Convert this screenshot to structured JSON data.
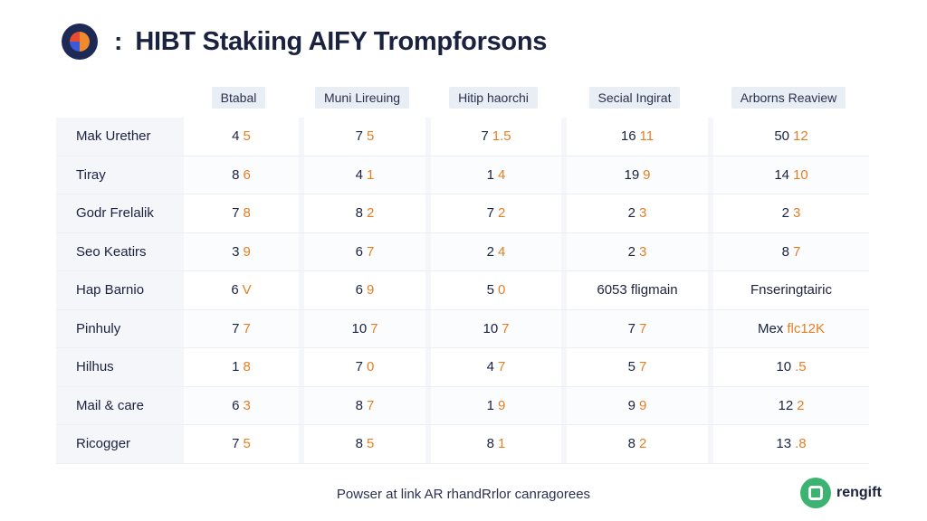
{
  "header": {
    "colon": ":",
    "title": "HIBT Stakiing AIFY Trompforsons"
  },
  "chart_data": {
    "type": "table",
    "columns": [
      "Btabal",
      "Muni Lireuing",
      "Hitip haorchi",
      "Secial Ingirat",
      "Arborns Reaview"
    ],
    "rows": [
      {
        "label": "Mak Urether",
        "cells": [
          [
            "4",
            "5"
          ],
          [
            "7",
            "5"
          ],
          [
            "7",
            "1.5"
          ],
          [
            "16",
            "11"
          ],
          [
            "50",
            "12"
          ]
        ]
      },
      {
        "label": "Tiray",
        "cells": [
          [
            "8",
            "6"
          ],
          [
            "4",
            "1"
          ],
          [
            "1",
            "4"
          ],
          [
            "19",
            "9"
          ],
          [
            "14",
            "10"
          ]
        ]
      },
      {
        "label": "Godr Frelalik",
        "cells": [
          [
            "7",
            "8"
          ],
          [
            "8",
            "2"
          ],
          [
            "7",
            "2"
          ],
          [
            "2",
            "3"
          ],
          [
            "2",
            "3"
          ]
        ]
      },
      {
        "label": "Seo Keatirs",
        "cells": [
          [
            "3",
            "9"
          ],
          [
            "6",
            "7"
          ],
          [
            "2",
            "4"
          ],
          [
            "2",
            "3"
          ],
          [
            "8",
            "7"
          ]
        ]
      },
      {
        "label": "Hap Barnio",
        "cells": [
          [
            "6",
            "V"
          ],
          [
            "6",
            "9"
          ],
          [
            "5",
            "0"
          ],
          [
            "6053 fligmain",
            ""
          ],
          [
            "Fnseringtairic",
            ""
          ]
        ]
      },
      {
        "label": "Pinhuly",
        "cells": [
          [
            "7",
            "7"
          ],
          [
            "10",
            "7"
          ],
          [
            "10",
            "7"
          ],
          [
            "7",
            "7"
          ],
          [
            "Mex",
            "flc12K"
          ]
        ]
      },
      {
        "label": "Hilhus",
        "cells": [
          [
            "1",
            "8"
          ],
          [
            "7",
            "0"
          ],
          [
            "4",
            "7"
          ],
          [
            "5",
            "7"
          ],
          [
            "10",
            ".5"
          ]
        ]
      },
      {
        "label": "Mail & care",
        "cells": [
          [
            "6",
            "3"
          ],
          [
            "8",
            "7"
          ],
          [
            "1",
            "9"
          ],
          [
            "9",
            "9"
          ],
          [
            "12",
            "2"
          ]
        ]
      },
      {
        "label": "Ricogger",
        "cells": [
          [
            "7",
            "5"
          ],
          [
            "8",
            "5"
          ],
          [
            "8",
            "1"
          ],
          [
            "8",
            "2"
          ],
          [
            "13",
            ".8"
          ]
        ]
      }
    ]
  },
  "footer": {
    "caption": "Powser at link AR rhandRrlor canragorees"
  },
  "brand": {
    "name": "rengift"
  },
  "colors": {
    "accent": "#e67e22",
    "text": "#1b2240",
    "brand": "#3cb371"
  }
}
